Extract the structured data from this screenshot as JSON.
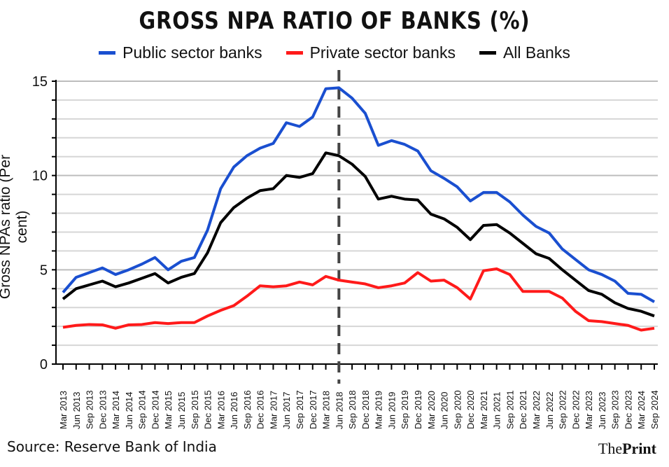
{
  "chart_data": {
    "type": "line",
    "title": "GROSS NPA RATIO OF BANKS (%)",
    "xlabel": "",
    "ylabel": "Gross NPAs ratio (Per cent)",
    "ylim": [
      0,
      15
    ],
    "yticks": [
      0,
      5,
      10,
      15
    ],
    "grid": true,
    "legend_position": "top",
    "categories": [
      "Mar 2013",
      "Jun 2013",
      "Sep 2013",
      "Dec 2013",
      "Mar 2014",
      "Jun 2014",
      "Sep 2014",
      "Dec 2014",
      "Mar 2015",
      "Jun 2015",
      "Sep 2015",
      "Dec 2015",
      "Mar 2016",
      "Jun 2016",
      "Sep 2016",
      "Dec 2016",
      "Mar 2017",
      "Jun 2017",
      "Sep 2017",
      "Dec 2017",
      "Mar 2018",
      "Jun 2018",
      "Sep 2018",
      "Dec 2018",
      "Mar 2019",
      "Jun 2019",
      "Sep 2019",
      "Dec 2019",
      "Mar 2020",
      "Jun 2020",
      "Sep 2020",
      "Dec 2020",
      "Mar 2021",
      "Jun 2021",
      "Sep 2021",
      "Dec 2021",
      "Mar 2022",
      "Jun 2022",
      "Sep 2022",
      "Dec 2022",
      "Mar 2023",
      "Jun 2023",
      "Sep 2023",
      "Dec 2023",
      "Mar 2024",
      "Sep 2024"
    ],
    "series": [
      {
        "name": "Public sector banks",
        "color": "#1a4fd0",
        "values": [
          3.8,
          4.6,
          4.85,
          5.1,
          4.75,
          5.0,
          5.3,
          5.65,
          5.0,
          5.45,
          5.65,
          7.1,
          9.3,
          10.45,
          11.05,
          11.45,
          11.7,
          12.8,
          12.6,
          13.1,
          14.6,
          14.65,
          14.1,
          13.3,
          11.6,
          11.85,
          11.65,
          11.3,
          10.25,
          9.85,
          9.4,
          8.65,
          9.1,
          9.1,
          8.6,
          7.9,
          7.3,
          6.95,
          6.1,
          5.55,
          5.0,
          4.75,
          4.4,
          3.75,
          3.7,
          3.3
        ]
      },
      {
        "name": "Private sector banks",
        "color": "#ff1a1a",
        "values": [
          1.95,
          2.05,
          2.1,
          2.08,
          1.9,
          2.08,
          2.1,
          2.2,
          2.15,
          2.2,
          2.2,
          2.55,
          2.85,
          3.1,
          3.6,
          4.15,
          4.1,
          4.15,
          4.35,
          4.2,
          4.65,
          4.45,
          4.35,
          4.25,
          4.05,
          4.15,
          4.3,
          4.85,
          4.4,
          4.45,
          4.05,
          3.45,
          4.95,
          5.05,
          4.75,
          3.85,
          3.85,
          3.85,
          3.5,
          2.8,
          2.3,
          2.25,
          2.15,
          2.05,
          1.8,
          1.9
        ]
      },
      {
        "name": "All Banks",
        "color": "#000000",
        "values": [
          3.45,
          4.0,
          4.2,
          4.4,
          4.1,
          4.3,
          4.55,
          4.8,
          4.3,
          4.6,
          4.8,
          5.9,
          7.5,
          8.3,
          8.8,
          9.2,
          9.3,
          10.0,
          9.9,
          10.1,
          11.2,
          11.05,
          10.6,
          9.95,
          8.75,
          8.9,
          8.75,
          8.7,
          7.95,
          7.7,
          7.25,
          6.6,
          7.35,
          7.4,
          6.95,
          6.4,
          5.85,
          5.6,
          5.0,
          4.45,
          3.9,
          3.7,
          3.25,
          2.95,
          2.8,
          2.55
        ]
      }
    ],
    "annotations": [
      {
        "type": "vertical-dashed-line",
        "at": "Jun 2018"
      }
    ]
  },
  "footer": {
    "source": "Source: Reserve Bank of India",
    "logo_the": "The",
    "logo_print": "Print"
  }
}
